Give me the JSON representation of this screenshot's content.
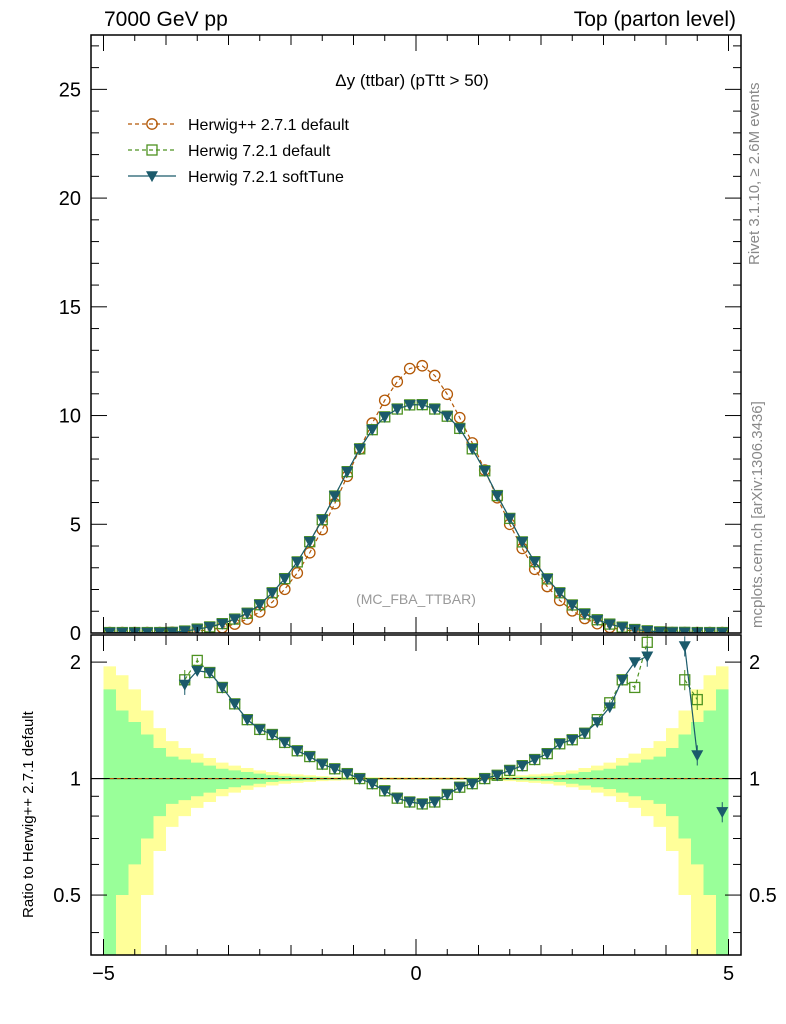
{
  "header": {
    "left": "7000 GeV pp",
    "right": "Top (parton level)"
  },
  "side_labels": {
    "rivet": "Rivet 3.1.10, ≥ 2.6M events",
    "mcplots": "mcplots.cern.ch [arXiv:1306.3436]"
  },
  "chart_data": {
    "type": "line",
    "title": "Δy (ttbar) (pTtt > 50)",
    "watermark": "(MC_FBA_TTBAR)",
    "ratio_ylabel": "Ratio to Herwig++ 2.7.1 default",
    "xlim": [
      -5.2,
      5.2
    ],
    "ylim": [
      0,
      27.5
    ],
    "ratio_ylim": [
      0.35,
      2.35
    ],
    "ratio_log_scale": true,
    "x_ticks": [
      "−5",
      "0",
      "5"
    ],
    "y_ticks": [
      "0",
      "5",
      "10",
      "15",
      "20",
      "25"
    ],
    "ratio_ticks": [
      "0.5",
      "1",
      "2"
    ],
    "legend_position": "top-left",
    "colors": {
      "herwigpp": "#b35806",
      "herwig721": "#4d9221",
      "softtune": "#1b5a6b",
      "band_inner": "#99ff99",
      "band_outer": "#ffff99"
    },
    "series": [
      {
        "name": "Herwig++ 2.7.1 default",
        "style": "dashed-circle",
        "x": [
          -4.9,
          -4.7,
          -4.5,
          -4.3,
          -4.1,
          -3.9,
          -3.7,
          -3.5,
          -3.3,
          -3.1,
          -2.9,
          -2.7,
          -2.5,
          -2.3,
          -2.1,
          -1.9,
          -1.7,
          -1.5,
          -1.3,
          -1.1,
          -0.9,
          -0.7,
          -0.5,
          -0.3,
          -0.1,
          0.1,
          0.3,
          0.5,
          0.7,
          0.9,
          1.1,
          1.3,
          1.5,
          1.7,
          1.9,
          2.1,
          2.3,
          2.5,
          2.7,
          2.9,
          3.1,
          3.3,
          3.5,
          3.7,
          3.9,
          4.1,
          4.3,
          4.5,
          4.7,
          4.9
        ],
        "values": [
          0.02,
          0.02,
          0.02,
          0.02,
          0.02,
          0.03,
          0.05,
          0.09,
          0.15,
          0.25,
          0.41,
          0.64,
          0.97,
          1.42,
          2.01,
          2.76,
          3.69,
          4.76,
          5.95,
          7.21,
          8.46,
          9.65,
          10.7,
          11.56,
          12.16,
          12.29,
          11.84,
          10.98,
          9.9,
          8.74,
          7.49,
          6.22,
          5.0,
          3.89,
          2.93,
          2.14,
          1.5,
          1.02,
          0.67,
          0.43,
          0.26,
          0.15,
          0.09,
          0.05,
          0.03,
          0.02,
          0.02,
          0.02,
          0.02,
          0.02
        ]
      },
      {
        "name": "Herwig 7.2.1 default",
        "style": "dashed-square",
        "x": [
          -4.9,
          -4.7,
          -4.5,
          -4.3,
          -4.1,
          -3.9,
          -3.7,
          -3.5,
          -3.3,
          -3.1,
          -2.9,
          -2.7,
          -2.5,
          -2.3,
          -2.1,
          -1.9,
          -1.7,
          -1.5,
          -1.3,
          -1.1,
          -0.9,
          -0.7,
          -0.5,
          -0.3,
          -0.1,
          0.1,
          0.3,
          0.5,
          0.7,
          0.9,
          1.1,
          1.3,
          1.5,
          1.7,
          1.9,
          2.1,
          2.3,
          2.5,
          2.7,
          2.9,
          3.1,
          3.3,
          3.5,
          3.7,
          3.9,
          4.1,
          4.3,
          4.5,
          4.7,
          4.9
        ],
        "values": [
          0.02,
          0.02,
          0.02,
          0.02,
          0.02,
          0.03,
          0.09,
          0.18,
          0.28,
          0.43,
          0.64,
          0.91,
          1.3,
          1.85,
          2.5,
          3.27,
          4.2,
          5.21,
          6.3,
          7.42,
          8.47,
          9.35,
          9.94,
          10.3,
          10.49,
          10.5,
          10.3,
          9.97,
          9.41,
          8.47,
          7.46,
          6.32,
          5.27,
          4.19,
          3.28,
          2.49,
          1.85,
          1.29,
          0.88,
          0.61,
          0.41,
          0.27,
          0.16,
          0.1,
          0.05,
          0.03,
          0.03,
          0.02,
          0.02,
          0.02
        ],
        "ratio": [
          null,
          null,
          null,
          null,
          null,
          null,
          1.8,
          2.02,
          1.88,
          1.72,
          1.56,
          1.42,
          1.34,
          1.3,
          1.24,
          1.18,
          1.14,
          1.09,
          1.06,
          1.03,
          1.0,
          0.97,
          0.93,
          0.89,
          0.87,
          0.86,
          0.87,
          0.91,
          0.95,
          0.97,
          1.0,
          1.02,
          1.05,
          1.08,
          1.12,
          1.16,
          1.23,
          1.26,
          1.31,
          1.42,
          1.57,
          1.8,
          1.72,
          2.25,
          null,
          null,
          1.8,
          1.6,
          null,
          null
        ]
      },
      {
        "name": "Herwig 7.2.1 softTune",
        "style": "solid-triangle",
        "x": [
          -4.9,
          -4.7,
          -4.5,
          -4.3,
          -4.1,
          -3.9,
          -3.7,
          -3.5,
          -3.3,
          -3.1,
          -2.9,
          -2.7,
          -2.5,
          -2.3,
          -2.1,
          -1.9,
          -1.7,
          -1.5,
          -1.3,
          -1.1,
          -0.9,
          -0.7,
          -0.5,
          -0.3,
          -0.1,
          0.1,
          0.3,
          0.5,
          0.7,
          0.9,
          1.1,
          1.3,
          1.5,
          1.7,
          1.9,
          2.1,
          2.3,
          2.5,
          2.7,
          2.9,
          3.1,
          3.3,
          3.5,
          3.7,
          3.9,
          4.1,
          4.3,
          4.5,
          4.7,
          4.9
        ],
        "values": [
          0.02,
          0.02,
          0.02,
          0.02,
          0.02,
          0.03,
          0.09,
          0.17,
          0.28,
          0.43,
          0.64,
          0.91,
          1.3,
          1.85,
          2.5,
          3.27,
          4.2,
          5.21,
          6.3,
          7.42,
          8.47,
          9.35,
          9.94,
          10.3,
          10.49,
          10.5,
          10.3,
          9.97,
          9.41,
          8.47,
          7.46,
          6.32,
          5.27,
          4.19,
          3.28,
          2.49,
          1.85,
          1.29,
          0.88,
          0.6,
          0.4,
          0.27,
          0.16,
          0.1,
          0.05,
          0.03,
          0.03,
          0.02,
          0.02,
          0.02
        ],
        "ratio": [
          null,
          null,
          null,
          null,
          null,
          null,
          1.75,
          1.9,
          1.88,
          1.72,
          1.56,
          1.42,
          1.34,
          1.3,
          1.24,
          1.18,
          1.14,
          1.09,
          1.06,
          1.03,
          1.0,
          0.97,
          0.93,
          0.89,
          0.87,
          0.86,
          0.87,
          0.91,
          0.95,
          0.97,
          1.0,
          1.02,
          1.05,
          1.08,
          1.12,
          1.16,
          1.23,
          1.26,
          1.31,
          1.4,
          1.53,
          1.8,
          2.0,
          2.07,
          null,
          null,
          2.2,
          1.15,
          null,
          0.82
        ]
      }
    ],
    "mc_band": {
      "edges": [
        -5.0,
        -4.8,
        -4.6,
        -4.4,
        -4.2,
        -4.0,
        -3.8,
        -3.6,
        -3.4,
        -3.2,
        -3.0,
        -2.8,
        -2.6,
        -2.4,
        -2.2,
        -2.0,
        -1.8,
        -1.6,
        -1.4,
        -1.2,
        -1.0,
        0.0,
        1.0,
        1.2,
        1.4,
        1.6,
        1.8,
        2.0,
        2.2,
        2.4,
        2.6,
        2.8,
        3.0,
        3.2,
        3.4,
        3.6,
        3.8,
        4.0,
        4.2,
        4.4,
        4.6,
        4.8,
        5.0
      ],
      "inner_rel": [
        0.7,
        0.5,
        0.4,
        0.3,
        0.2,
        0.14,
        0.12,
        0.1,
        0.08,
        0.06,
        0.05,
        0.04,
        0.03,
        0.02,
        0.015,
        0.012,
        0.01,
        0.008,
        0.006,
        0.005,
        0.004,
        0.004,
        0.005,
        0.006,
        0.008,
        0.01,
        0.012,
        0.015,
        0.02,
        0.03,
        0.04,
        0.05,
        0.06,
        0.08,
        0.1,
        0.12,
        0.14,
        0.2,
        0.3,
        0.4,
        0.5,
        0.7
      ],
      "outer_rel": [
        0.95,
        0.85,
        0.7,
        0.5,
        0.35,
        0.25,
        0.2,
        0.16,
        0.13,
        0.1,
        0.08,
        0.065,
        0.05,
        0.04,
        0.03,
        0.025,
        0.02,
        0.015,
        0.012,
        0.01,
        0.008,
        0.008,
        0.01,
        0.012,
        0.015,
        0.02,
        0.025,
        0.03,
        0.04,
        0.05,
        0.065,
        0.08,
        0.1,
        0.13,
        0.16,
        0.2,
        0.25,
        0.35,
        0.5,
        0.7,
        0.85,
        0.95
      ]
    }
  }
}
